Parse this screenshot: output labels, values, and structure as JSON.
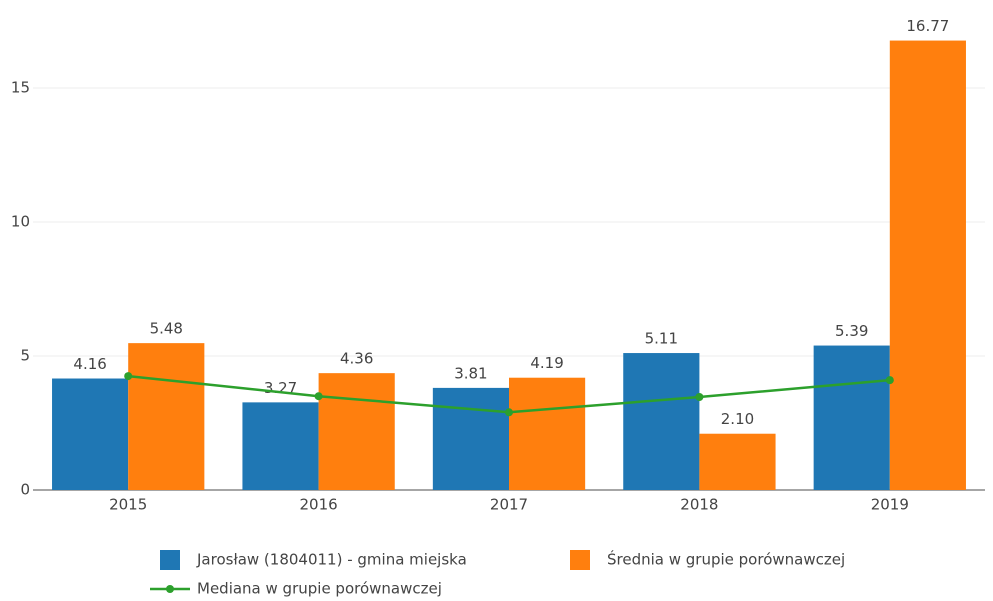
{
  "chart_data": {
    "type": "bar",
    "categories": [
      "2015",
      "2016",
      "2017",
      "2018",
      "2019"
    ],
    "series": [
      {
        "name": "Jarosław (1804011) - gmina miejska",
        "color": "#1f77b4",
        "values": [
          4.16,
          3.27,
          3.81,
          5.11,
          5.39
        ],
        "value_labels": [
          "4.16",
          "3.27",
          "3.81",
          "5.11",
          "5.39"
        ]
      },
      {
        "name": "Średnia w grupie porównawczej",
        "color": "#ff7f0e",
        "values": [
          5.48,
          4.36,
          4.19,
          2.1,
          16.77
        ],
        "value_labels": [
          "5.48",
          "4.36",
          "4.19",
          "2.10",
          "16.77"
        ]
      },
      {
        "name": "Mediana w grupie porównawczej",
        "color": "#2ca02c",
        "type": "line",
        "values": [
          4.25,
          3.5,
          2.9,
          3.47,
          4.1
        ]
      }
    ],
    "ylim": [
      0,
      17.5
    ],
    "yticks": [
      0,
      5,
      10,
      15
    ],
    "grid": true
  }
}
